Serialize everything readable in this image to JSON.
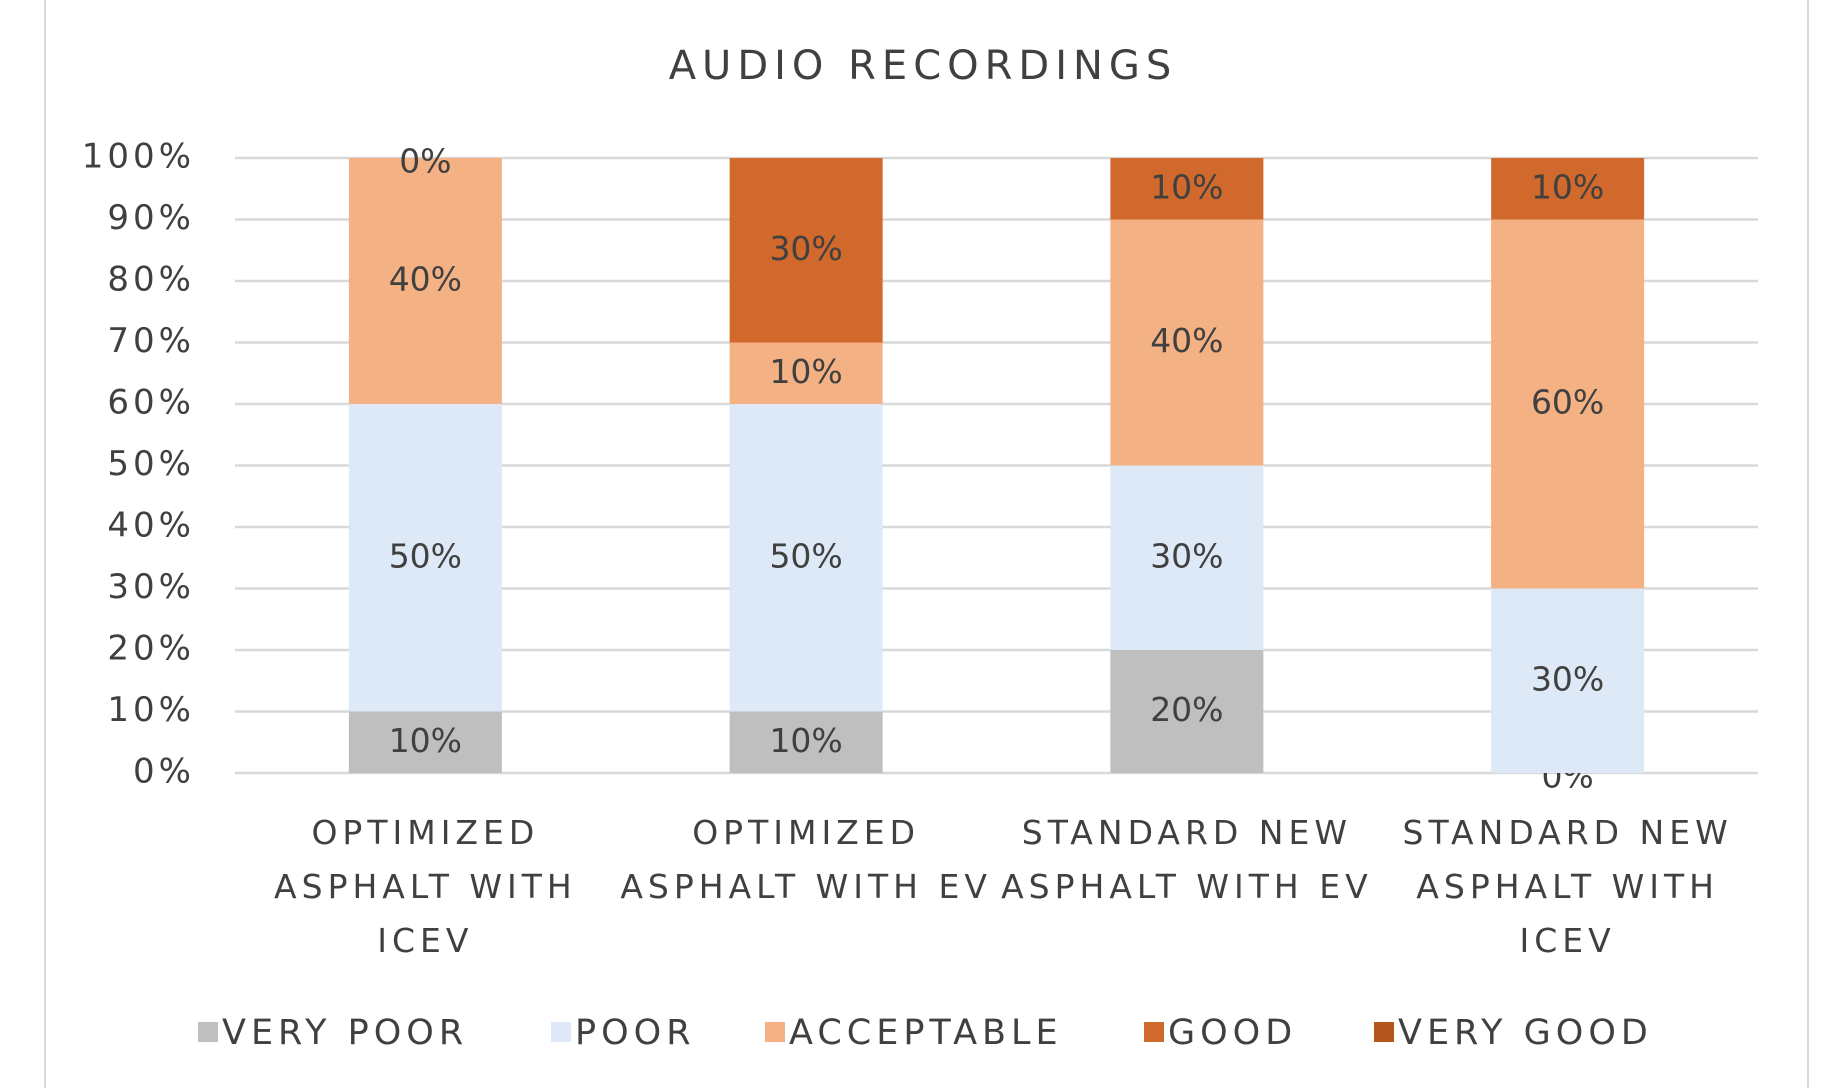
{
  "chart_data": {
    "type": "stacked_bar",
    "title": "AUDIO RECORDINGS",
    "categories": [
      "OPTIMIZED ASPHALT WITH ICEV",
      "OPTIMIZED ASPHALT WITH EV",
      "STANDARD NEW ASPHALT WITH EV",
      "STANDARD NEW ASPHALT WITH ICEV"
    ],
    "series": [
      {
        "name": "VERY POOR",
        "color": "#bfbfbf",
        "values": [
          10,
          10,
          20,
          0
        ],
        "value_labels": [
          "10%",
          "10%",
          "20%",
          "0%"
        ]
      },
      {
        "name": "POOR",
        "color": "#dde9f6",
        "values": [
          50,
          50,
          30,
          30
        ],
        "value_labels": [
          "50%",
          "50%",
          "30%",
          "30%"
        ]
      },
      {
        "name": "ACCEPTABLE",
        "color": "#f4b183",
        "values": [
          40,
          10,
          40,
          60
        ],
        "value_labels": [
          "40%",
          "10%",
          "40%",
          "60%"
        ]
      },
      {
        "name": "GOOD",
        "color": "#d0692b",
        "values": [
          0,
          30,
          10,
          10
        ],
        "value_labels": [
          "0%",
          "30%",
          "10%",
          "10%"
        ]
      },
      {
        "name": "VERY GOOD",
        "color": "#b5561e",
        "values": [
          null,
          null,
          null,
          null
        ]
      }
    ],
    "ylim": [
      0,
      100
    ],
    "yticks": [
      {
        "value": 0,
        "label": "0%"
      },
      {
        "value": 10,
        "label": "10%"
      },
      {
        "value": 20,
        "label": "20%"
      },
      {
        "value": 30,
        "label": "30%"
      },
      {
        "value": 40,
        "label": "40%"
      },
      {
        "value": 50,
        "label": "50%"
      },
      {
        "value": 60,
        "label": "60%"
      },
      {
        "value": 70,
        "label": "70%"
      },
      {
        "value": 80,
        "label": "80%"
      },
      {
        "value": 90,
        "label": "90%"
      },
      {
        "value": 100,
        "label": "100%"
      }
    ],
    "grid": true,
    "legend": "bottom"
  }
}
